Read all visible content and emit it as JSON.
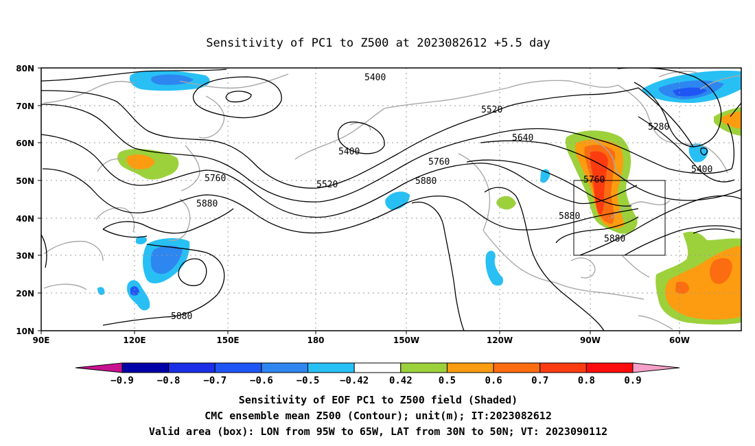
{
  "title": "Sensitivity of PC1 to Z500 at 2023082612 +5.5 day",
  "lat_ticks": [
    "80N",
    "70N",
    "60N",
    "50N",
    "40N",
    "30N",
    "20N",
    "10N"
  ],
  "lon_ticks": [
    "90E",
    "120E",
    "150E",
    "180",
    "150W",
    "120W",
    "90W",
    "60W"
  ],
  "contour_labels": {
    "c5400a": "5400",
    "c5400b": "5400",
    "c5400c": "5400",
    "c5520a": "5520",
    "c5520b": "5520",
    "c5280": "5280",
    "c5640": "5640",
    "c5760a": "5760",
    "c5760b": "5760",
    "c5760c": "5760",
    "c5880a": "5880",
    "c5880b": "5880",
    "c5880c": "5880",
    "c5880d": "5880",
    "c5880e": "5880"
  },
  "colorbar": {
    "labels": [
      "−0.9",
      "−0.8",
      "−0.7",
      "−0.6",
      "−0.5",
      "−0.42",
      "0.42",
      "0.5",
      "0.6",
      "0.7",
      "0.8",
      "0.9"
    ],
    "colors": [
      "#0000a8",
      "#1a2fe6",
      "#1e56f5",
      "#2e86f0",
      "#28c0f4",
      "#ffffff",
      "#9cd13c",
      "#fd9c10",
      "#fc6c10",
      "#fc3c10",
      "#fc0c0c"
    ],
    "low_extend": "#c8118f",
    "high_extend": "#f4a0c8"
  },
  "captions": {
    "line1": "Sensitivity of EOF PC1 to Z500 field (Shaded)",
    "line2": "CMC ensemble mean Z500 (Contour); unit(m); IT:2023082612",
    "line3": "Valid area (box): LON from 95W to 65W, LAT from 30N to 50N; VT: 2023090112"
  }
}
